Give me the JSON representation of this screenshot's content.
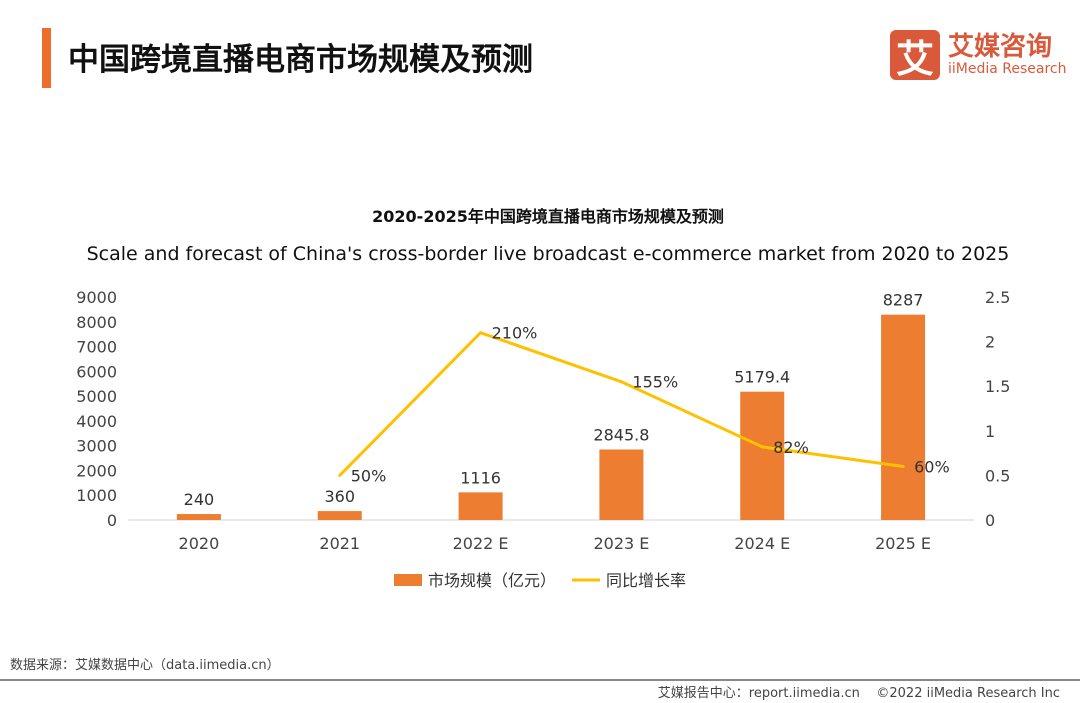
{
  "header": {
    "title": "中国跨境直播电商市场规模及预测"
  },
  "logo": {
    "icon_char": "艾",
    "cn": "艾媒咨询",
    "en": "iiMedia Research"
  },
  "chart_data": {
    "type": "bar+line",
    "title": "2020-2025年中国跨境直播电商市场规模及预测",
    "subtitle": "Scale and forecast of China's cross-border live broadcast e-commerce market from 2020 to 2025",
    "categories": [
      "2020",
      "2021",
      "2022 E",
      "2023 E",
      "2024 E",
      "2025 E"
    ],
    "series": [
      {
        "name": "市场规模（亿元）",
        "type": "bar",
        "axis": "left",
        "color": "#ed7d31",
        "values": [
          240,
          360,
          1116,
          2845.8,
          5179.4,
          8287
        ],
        "labels": [
          "240",
          "360",
          "1116",
          "2845.8",
          "5179.4",
          "8287"
        ]
      },
      {
        "name": "同比增长率",
        "type": "line",
        "axis": "right",
        "color": "#ffc000",
        "values": [
          null,
          0.5,
          2.1,
          1.55,
          0.82,
          0.6
        ],
        "labels": [
          "",
          "50%",
          "210%",
          "155%",
          "82%",
          "60%"
        ]
      }
    ],
    "y_left": {
      "range": [
        0,
        9000
      ],
      "ticks": [
        0,
        1000,
        2000,
        3000,
        4000,
        5000,
        6000,
        7000,
        8000,
        9000
      ]
    },
    "y_right": {
      "range": [
        0,
        2.5
      ],
      "ticks": [
        "0",
        "0.5",
        "1",
        "1.5",
        "2",
        "2.5"
      ]
    },
    "grid": false,
    "legend_placement": "bottom"
  },
  "footer": {
    "source": "数据来源：艾媒数据中心（data.iimedia.cn）",
    "report": "艾媒报告中心：report.iimedia.cn",
    "copyright": "©2022  iiMedia Research  Inc"
  }
}
